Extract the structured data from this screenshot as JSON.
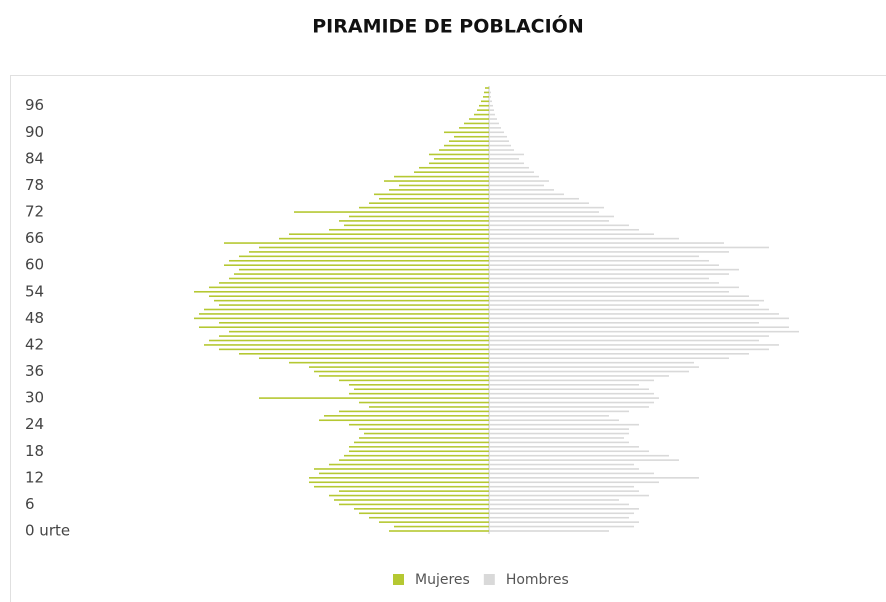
{
  "chart_data": {
    "type": "population-pyramid",
    "title": "PIRAMIDE DE POBLACIÓN",
    "categories": [
      "0 urte",
      null,
      null,
      null,
      null,
      null,
      "6",
      null,
      null,
      null,
      null,
      null,
      "12",
      null,
      null,
      null,
      null,
      null,
      "18",
      null,
      null,
      null,
      null,
      null,
      "24",
      null,
      null,
      null,
      null,
      null,
      "30",
      null,
      null,
      null,
      null,
      null,
      "36",
      null,
      null,
      null,
      null,
      null,
      "42",
      null,
      null,
      null,
      null,
      null,
      "48",
      null,
      null,
      null,
      null,
      null,
      "54",
      null,
      null,
      null,
      null,
      null,
      "60",
      null,
      null,
      null,
      null,
      null,
      "66",
      null,
      null,
      null,
      null,
      null,
      "72",
      null,
      null,
      null,
      null,
      null,
      "78",
      null,
      null,
      null,
      null,
      null,
      "84",
      null,
      null,
      null,
      null,
      null,
      "90",
      null,
      null,
      null,
      null,
      null,
      "96",
      null,
      null,
      null,
      null
    ],
    "series": [
      {
        "name": "Mujeres",
        "color": "#b5c832",
        "side": "left",
        "values": [
          100,
          95,
          110,
          120,
          130,
          135,
          150,
          155,
          160,
          150,
          175,
          180,
          180,
          170,
          175,
          160,
          150,
          145,
          140,
          140,
          135,
          130,
          125,
          130,
          140,
          170,
          165,
          150,
          120,
          130,
          230,
          140,
          135,
          140,
          150,
          170,
          175,
          180,
          200,
          230,
          250,
          270,
          285,
          280,
          270,
          260,
          290,
          270,
          295,
          290,
          285,
          270,
          275,
          280,
          295,
          280,
          270,
          260,
          255,
          250,
          265,
          260,
          250,
          240,
          230,
          265,
          210,
          200,
          160,
          145,
          150,
          140,
          195,
          130,
          120,
          110,
          115,
          100,
          90,
          105,
          95,
          75,
          70,
          60,
          55,
          60,
          50,
          45,
          40,
          35,
          45,
          30,
          25,
          20,
          15,
          12,
          10,
          8,
          6,
          5,
          4
        ]
      },
      {
        "name": "Hombres",
        "color": "#d9d9d9",
        "side": "right",
        "values": [
          120,
          145,
          150,
          140,
          145,
          150,
          140,
          130,
          160,
          150,
          145,
          170,
          210,
          165,
          150,
          145,
          190,
          180,
          160,
          150,
          140,
          135,
          140,
          140,
          150,
          130,
          120,
          140,
          160,
          165,
          170,
          165,
          160,
          150,
          165,
          180,
          200,
          210,
          205,
          240,
          260,
          280,
          290,
          270,
          280,
          310,
          300,
          270,
          300,
          290,
          280,
          270,
          275,
          260,
          240,
          250,
          230,
          220,
          240,
          250,
          230,
          220,
          210,
          240,
          280,
          235,
          190,
          165,
          150,
          140,
          120,
          125,
          110,
          115,
          100,
          90,
          75,
          65,
          55,
          60,
          50,
          45,
          40,
          35,
          30,
          35,
          25,
          22,
          20,
          18,
          15,
          12,
          10,
          8,
          6,
          5,
          4,
          3,
          2,
          2,
          1
        ]
      }
    ]
  }
}
